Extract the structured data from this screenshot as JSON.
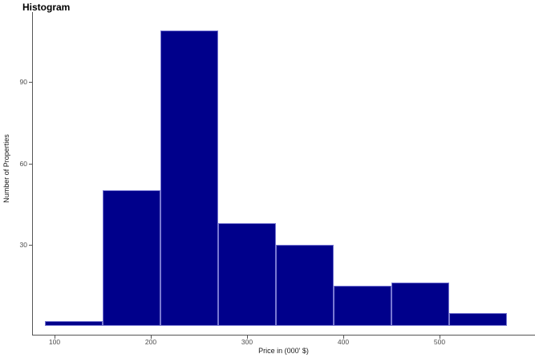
{
  "chart_data": {
    "type": "bar",
    "subtype": "histogram",
    "title": "Histogram",
    "xlabel": "Price in (000' $)",
    "ylabel": "Number of Properties",
    "bin_edges": [
      90,
      150,
      210,
      270,
      330,
      390,
      450,
      510,
      570
    ],
    "counts": [
      2,
      50,
      109,
      38,
      30,
      15,
      16,
      5
    ],
    "x_ticks": [
      100,
      200,
      300,
      400,
      500
    ],
    "y_ticks": [
      30,
      60,
      90
    ],
    "xlim": [
      77,
      599
    ],
    "ylim": [
      0,
      115
    ],
    "grid": false,
    "legend": false,
    "colors": {
      "bar_fill": "#00008B",
      "bar_border": "#7878D2",
      "axis_line": "#555555",
      "tick_label": "#4D4D4D",
      "title": "#000000",
      "background": "#FFFFFF"
    }
  }
}
